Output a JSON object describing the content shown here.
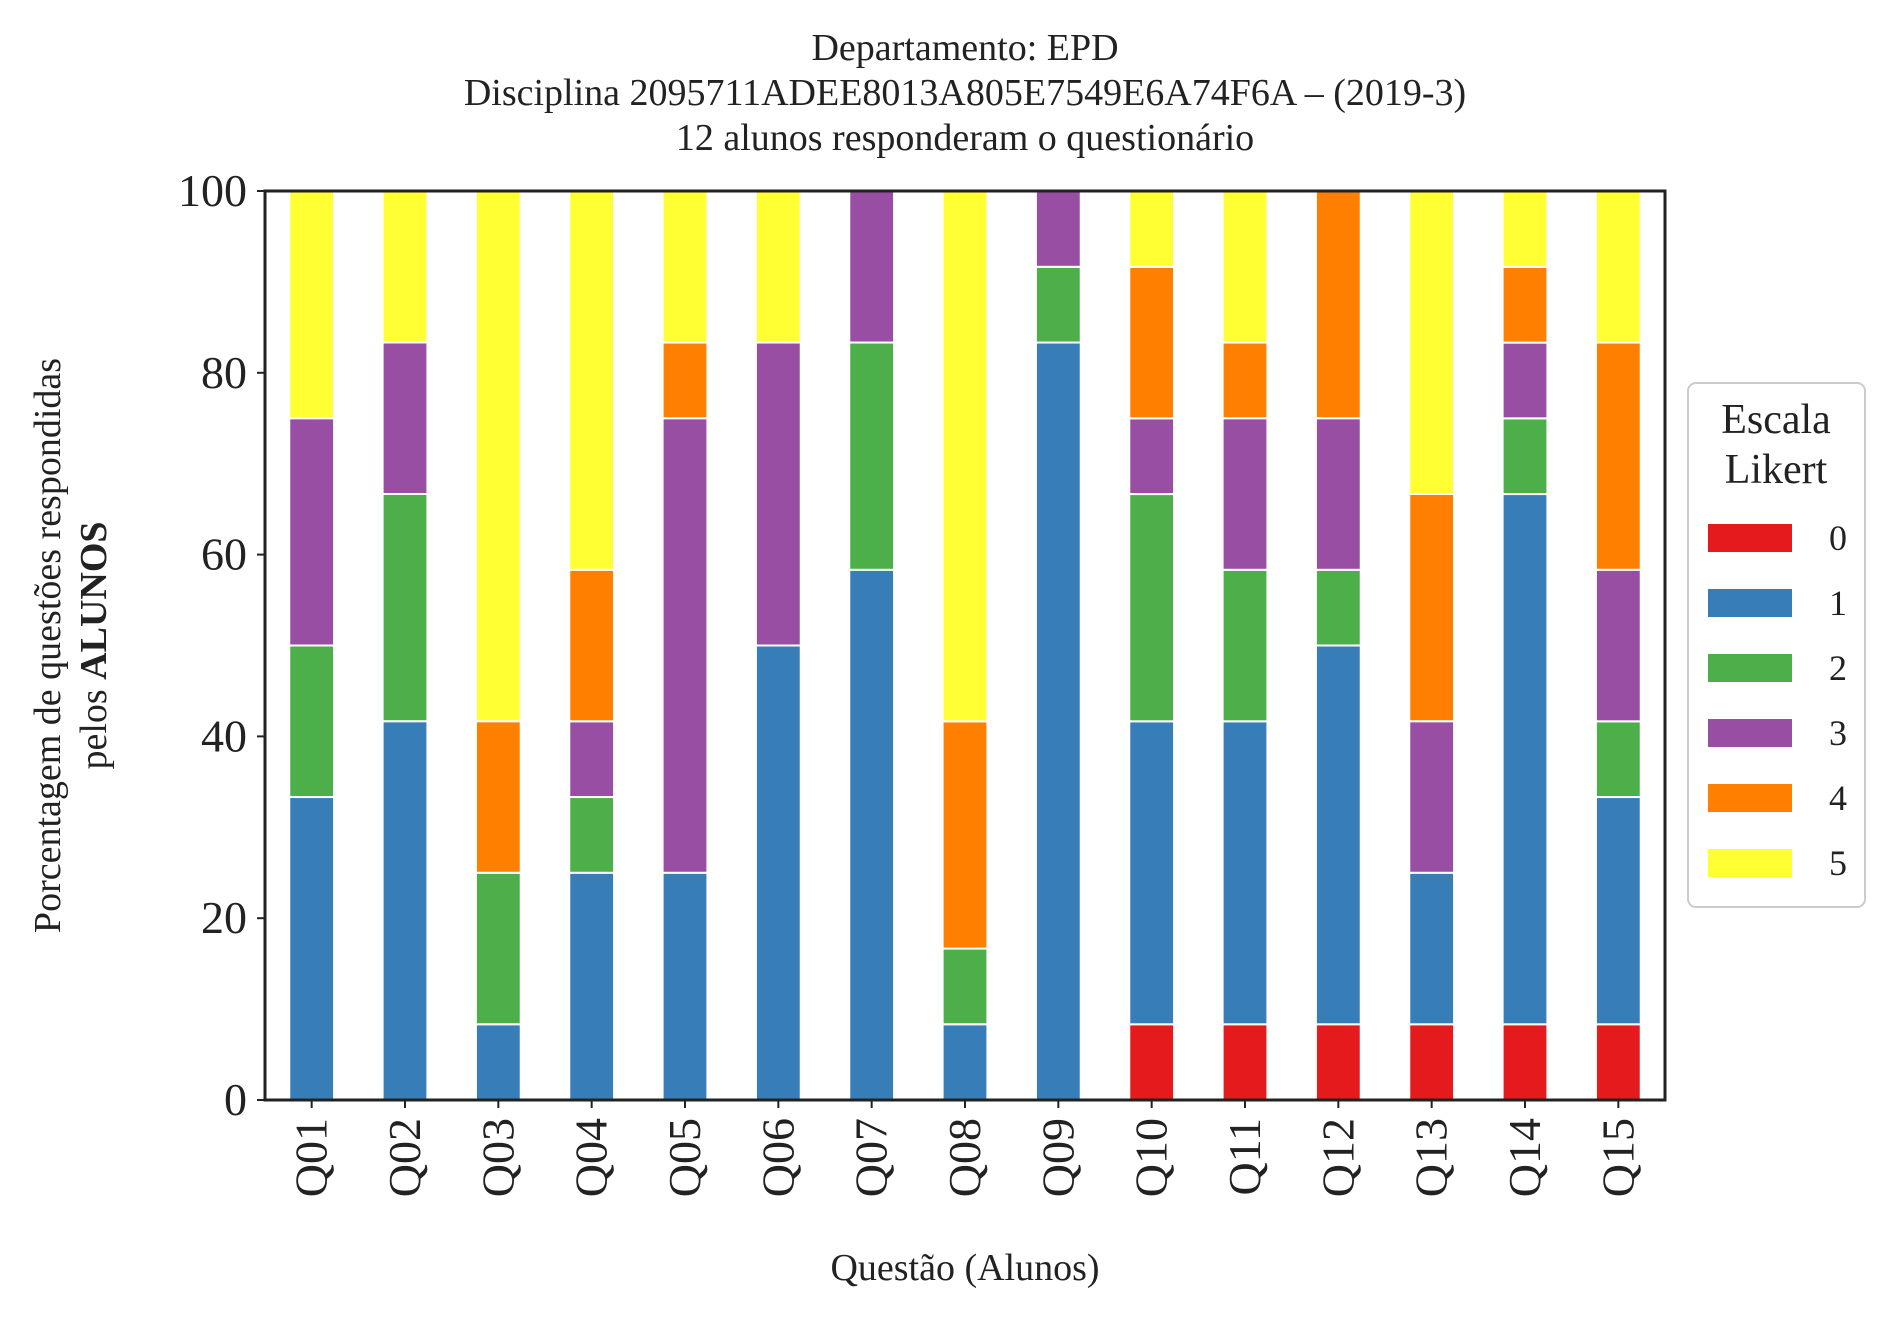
{
  "chart_data": {
    "type": "bar",
    "stacked": true,
    "title_lines": [
      "Departamento: EPD",
      "Disciplina 2095711ADEE8013A805E7549E6A74F6A – (2019-3)",
      "12 alunos responderam o questionário"
    ],
    "xlabel": "Questão (Alunos)",
    "ylabel_line1": "Porcentagem de questões respondidas",
    "ylabel_line2_prefix": "pelos ",
    "ylabel_line2_bold": "ALUNOS",
    "ylim": [
      0,
      100
    ],
    "yticks": [
      "0",
      "20",
      "40",
      "60",
      "80",
      "100"
    ],
    "grid": false,
    "legend": {
      "title_lines": [
        "Escala",
        "Likert"
      ],
      "placement": "center-right"
    },
    "categories": [
      "Q01",
      "Q02",
      "Q03",
      "Q04",
      "Q05",
      "Q06",
      "Q07",
      "Q08",
      "Q09",
      "Q10",
      "Q11",
      "Q12",
      "Q13",
      "Q14",
      "Q15"
    ],
    "series": [
      {
        "name": "0",
        "color": "#e41a1c",
        "values": [
          0,
          0,
          0,
          0,
          0,
          0,
          0,
          0,
          0,
          8.33,
          8.33,
          8.33,
          8.33,
          8.33,
          8.33
        ]
      },
      {
        "name": "1",
        "color": "#377eb8",
        "values": [
          33.33,
          41.67,
          8.33,
          25,
          25,
          50,
          58.33,
          8.33,
          83.33,
          33.33,
          33.33,
          41.67,
          16.67,
          58.33,
          25
        ]
      },
      {
        "name": "2",
        "color": "#4daf4a",
        "values": [
          16.67,
          25,
          16.67,
          8.33,
          0,
          0,
          25,
          8.33,
          8.33,
          25,
          16.67,
          8.33,
          0,
          8.33,
          8.33
        ]
      },
      {
        "name": "3",
        "color": "#984ea3",
        "values": [
          25,
          16.67,
          0,
          8.33,
          50,
          33.33,
          16.67,
          0,
          8.33,
          8.33,
          16.67,
          16.67,
          16.67,
          8.33,
          16.67
        ]
      },
      {
        "name": "4",
        "color": "#ff7f00",
        "values": [
          0,
          0,
          16.67,
          16.67,
          8.33,
          0,
          0,
          25,
          0,
          16.67,
          8.33,
          25,
          25,
          8.33,
          25
        ]
      },
      {
        "name": "5",
        "color": "#ffff33",
        "values": [
          25,
          16.67,
          58.33,
          41.67,
          16.67,
          16.67,
          0,
          58.33,
          0,
          8.33,
          16.67,
          0,
          33.33,
          8.33,
          16.67
        ]
      }
    ]
  }
}
